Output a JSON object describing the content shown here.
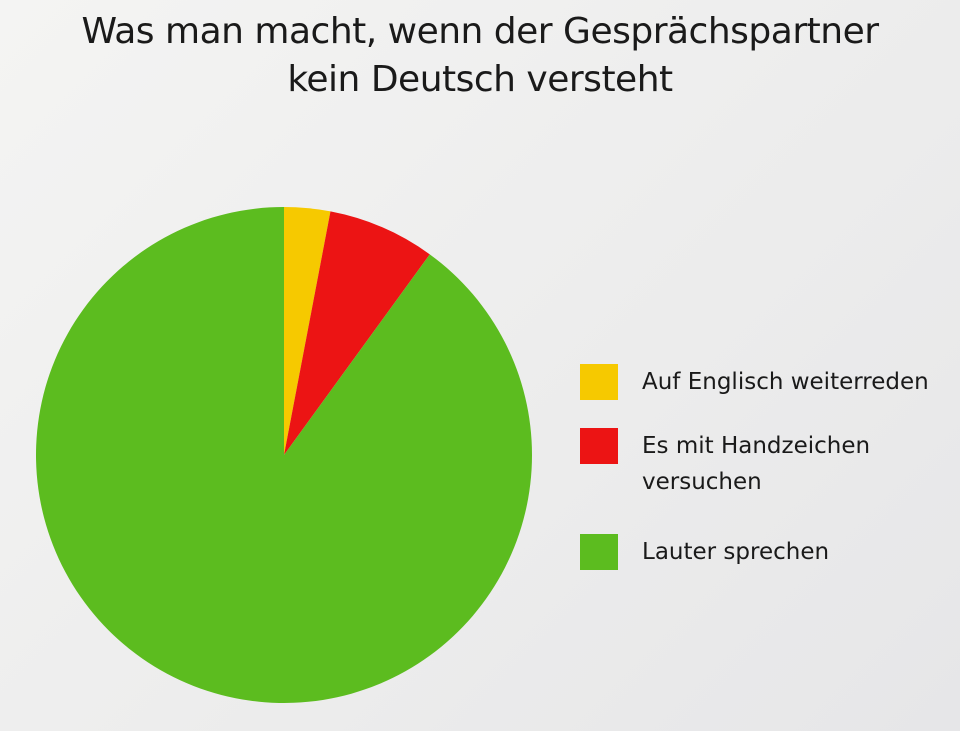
{
  "chart_data": {
    "type": "pie",
    "title": [
      "Was man macht, wenn der Gesprächspartner",
      "kein Deutsch versteht"
    ],
    "categories": [
      "Auf Englisch weiterreden",
      "Es mit Handzeichen versuchen",
      "Lauter sprechen"
    ],
    "values": [
      3,
      7,
      90
    ],
    "colors": [
      "#f6c900",
      "#ec1414",
      "#5cbc1f"
    ]
  }
}
